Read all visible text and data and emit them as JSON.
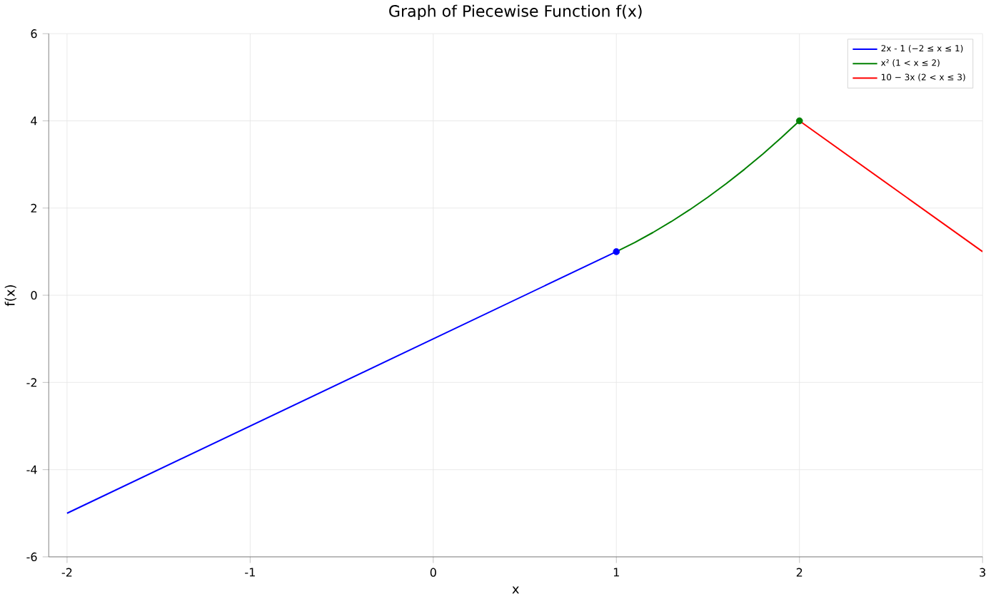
{
  "chart_data": {
    "type": "line",
    "title": "Graph of Piecewise Function f(x)",
    "xlabel": "x",
    "ylabel": "f(x)",
    "xlim": [
      -2.1,
      3
    ],
    "ylim": [
      -6,
      6
    ],
    "xticks": [
      -2,
      -1,
      0,
      1,
      2,
      3
    ],
    "yticks": [
      -6,
      -4,
      -2,
      0,
      2,
      4,
      6
    ],
    "grid": true,
    "legend": "top right",
    "marker": "none",
    "line_style": "solid",
    "series": [
      {
        "name": "2x - 1 (−2 ≤ x ≤ 1)",
        "color": "#0000ff",
        "x": [
          -2,
          1
        ],
        "values": [
          -5,
          1
        ]
      },
      {
        "name": "x² (1 < x ≤ 2)",
        "color": "#008000",
        "x": [
          1,
          1.1,
          1.2,
          1.3,
          1.4,
          1.5,
          1.6,
          1.7,
          1.8,
          1.9,
          2
        ],
        "values": [
          1,
          1.21,
          1.44,
          1.69,
          1.96,
          2.25,
          2.56,
          2.89,
          3.24,
          3.61,
          4
        ]
      },
      {
        "name": "10 − 3x (2 < x ≤ 3)",
        "color": "#ff0000",
        "x": [
          2,
          3
        ],
        "values": [
          4,
          1
        ]
      },
      {
        "type": "scatter",
        "marker": "circle",
        "colors": [
          "#0000ff",
          "#008000"
        ],
        "x": [
          1,
          2
        ],
        "values": [
          1,
          4
        ]
      }
    ]
  }
}
